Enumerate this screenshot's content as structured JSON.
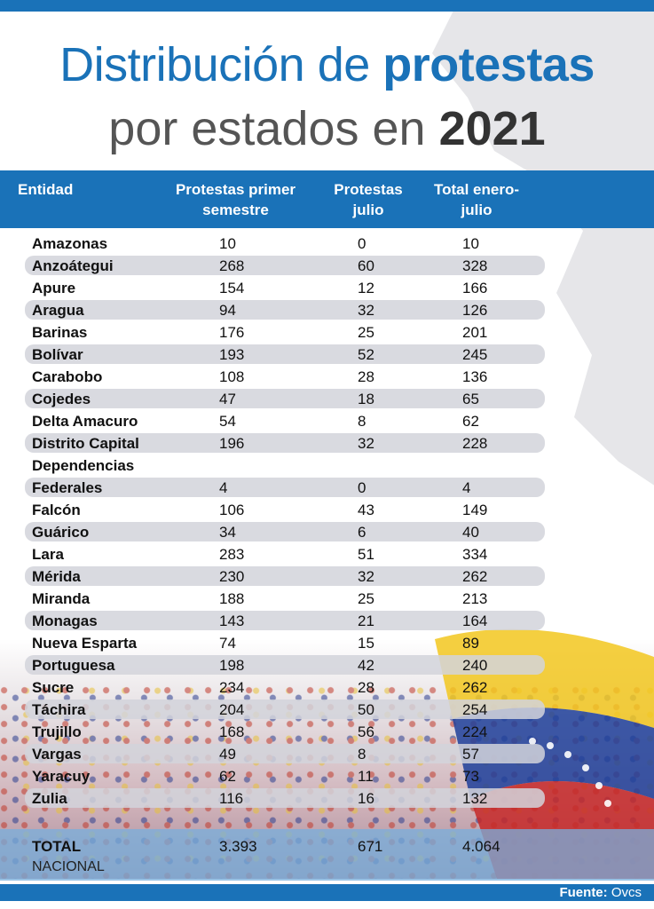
{
  "title": {
    "line1_a": "Distribución ",
    "line1_b": "de ",
    "line1_c": "protestas",
    "line2_a": "por estados en ",
    "line2_b": "2021"
  },
  "table": {
    "headers": [
      "Entidad",
      "Protestas primer semestre",
      "Protestas julio",
      "Total enero- julio"
    ],
    "rows": [
      [
        "Amazonas",
        "10",
        "0",
        "10"
      ],
      [
        "Anzoátegui",
        "268",
        "60",
        "328"
      ],
      [
        "Apure",
        "154",
        "12",
        "166"
      ],
      [
        "Aragua",
        "94",
        "32",
        "126"
      ],
      [
        "Barinas",
        "176",
        "25",
        "201"
      ],
      [
        "Bolívar",
        "193",
        "52",
        "245"
      ],
      [
        "Carabobo",
        "108",
        "28",
        "136"
      ],
      [
        "Cojedes",
        "47",
        "18",
        "65"
      ],
      [
        "Delta Amacuro",
        "54",
        "8",
        "62"
      ],
      [
        "Distrito Capital",
        "196",
        "32",
        "228"
      ],
      [
        "Dependencias",
        "",
        "",
        ""
      ],
      [
        "Federales",
        "4",
        "0",
        "4"
      ],
      [
        "Falcón",
        "106",
        "43",
        "149"
      ],
      [
        "Guárico",
        "34",
        "6",
        "40"
      ],
      [
        "Lara",
        "283",
        "51",
        "334"
      ],
      [
        "Mérida",
        "230",
        "32",
        "262"
      ],
      [
        "Miranda",
        "188",
        "25",
        "213"
      ],
      [
        "Monagas",
        "143",
        "21",
        "164"
      ],
      [
        "Nueva Esparta",
        "74",
        "15",
        "89"
      ],
      [
        "Portuguesa",
        "198",
        "42",
        "240"
      ],
      [
        "Sucre",
        "234",
        "28",
        "262"
      ],
      [
        "Táchira",
        "204",
        "50",
        "254"
      ],
      [
        "Trujillo",
        "168",
        "56",
        "224"
      ],
      [
        "Vargas",
        "49",
        "8",
        "57"
      ],
      [
        "Yaracuy",
        "62",
        "11",
        "73"
      ],
      [
        "Zulia",
        "116",
        "16",
        "132"
      ]
    ],
    "total": {
      "label": "TOTAL",
      "sublabel": "NACIONAL",
      "primer_semestre": "3.393",
      "julio": "671",
      "total": "4.064"
    }
  },
  "source": {
    "label": "Fuente:",
    "value": "Ovcs"
  },
  "colors": {
    "accent": "#1a72b8",
    "row_alt": "#d2d4da",
    "title_gray": "#555555"
  },
  "chart_data": {
    "type": "table",
    "columns": [
      "Entidad",
      "Protestas primer semestre",
      "Protestas julio",
      "Total enero- julio"
    ],
    "rows": [
      [
        "Amazonas",
        10,
        0,
        10
      ],
      [
        "Anzoátegui",
        268,
        60,
        328
      ],
      [
        "Apure",
        154,
        12,
        166
      ],
      [
        "Aragua",
        94,
        32,
        126
      ],
      [
        "Barinas",
        176,
        25,
        201
      ],
      [
        "Bolívar",
        193,
        52,
        245
      ],
      [
        "Carabobo",
        108,
        28,
        136
      ],
      [
        "Cojedes",
        47,
        18,
        65
      ],
      [
        "Delta Amacuro",
        54,
        8,
        62
      ],
      [
        "Distrito Capital",
        196,
        32,
        228
      ],
      [
        "Dependencias Federales",
        4,
        0,
        4
      ],
      [
        "Falcón",
        106,
        43,
        149
      ],
      [
        "Guárico",
        34,
        6,
        40
      ],
      [
        "Lara",
        283,
        51,
        334
      ],
      [
        "Mérida",
        230,
        32,
        262
      ],
      [
        "Miranda",
        188,
        25,
        213
      ],
      [
        "Monagas",
        143,
        21,
        164
      ],
      [
        "Nueva Esparta",
        74,
        15,
        89
      ],
      [
        "Portuguesa",
        198,
        42,
        240
      ],
      [
        "Sucre",
        234,
        28,
        262
      ],
      [
        "Táchira",
        204,
        50,
        254
      ],
      [
        "Trujillo",
        168,
        56,
        224
      ],
      [
        "Vargas",
        49,
        8,
        57
      ],
      [
        "Yaracuy",
        62,
        11,
        73
      ],
      [
        "Zulia",
        116,
        16,
        132
      ]
    ],
    "totals": [
      "TOTAL NACIONAL",
      3393,
      671,
      4064
    ],
    "title": "Distribución de protestas por estados en 2021"
  }
}
